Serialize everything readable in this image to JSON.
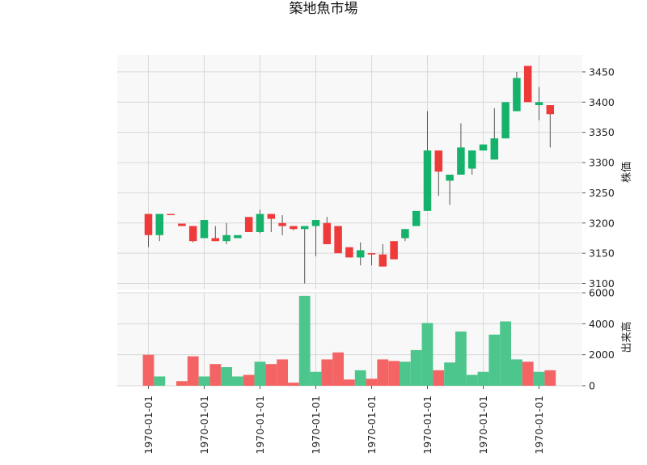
{
  "chart_data": {
    "type": "candlestick",
    "title": "築地魚市場",
    "colors": {
      "up": "#15b26b",
      "down": "#ef3a3a",
      "up_volume": "#4cc68c",
      "down_volume": "#f56464",
      "panel_bg": "#f8f8f8",
      "grid": "#d8d8d8"
    },
    "x_tick_labels": [
      "1970-01-01",
      "1970-01-01",
      "1970-01-01",
      "1970-01-01",
      "1970-01-01",
      "1970-01-01",
      "1970-01-01",
      "1970-01-01"
    ],
    "price_panel": {
      "ylabel": "株価",
      "ylim": [
        3090,
        3478
      ],
      "yticks": [
        3100,
        3150,
        3200,
        3250,
        3300,
        3350,
        3400,
        3450
      ],
      "grid": true
    },
    "volume_panel": {
      "ylabel": "出来高",
      "ylim": [
        0,
        6000
      ],
      "yticks": [
        0,
        2000,
        4000,
        6000
      ],
      "grid": true
    },
    "candles": [
      {
        "open": 3215,
        "high": 3215,
        "low": 3160,
        "close": 3180,
        "volume": 2000
      },
      {
        "open": 3180,
        "high": 3215,
        "low": 3170,
        "close": 3215,
        "volume": 600
      },
      {
        "open": 3215,
        "high": 3215,
        "low": 3214,
        "close": 3214,
        "volume": 0
      },
      {
        "open": 3199,
        "high": 3199,
        "low": 3195,
        "close": 3195,
        "volume": 300
      },
      {
        "open": 3195,
        "high": 3195,
        "low": 3168,
        "close": 3170,
        "volume": 1900
      },
      {
        "open": 3175,
        "high": 3205,
        "low": 3175,
        "close": 3205,
        "volume": 600
      },
      {
        "open": 3175,
        "high": 3195,
        "low": 3170,
        "close": 3170,
        "volume": 1400
      },
      {
        "open": 3170,
        "high": 3200,
        "low": 3165,
        "close": 3180,
        "volume": 1200
      },
      {
        "open": 3175,
        "high": 3180,
        "low": 3175,
        "close": 3180,
        "volume": 600
      },
      {
        "open": 3210,
        "high": 3210,
        "low": 3185,
        "close": 3185,
        "volume": 700
      },
      {
        "open": 3185,
        "high": 3222,
        "low": 3183,
        "close": 3215,
        "volume": 1550
      },
      {
        "open": 3215,
        "high": 3215,
        "low": 3185,
        "close": 3207,
        "volume": 1400
      },
      {
        "open": 3200,
        "high": 3213,
        "low": 3180,
        "close": 3195,
        "volume": 1700
      },
      {
        "open": 3195,
        "high": 3195,
        "low": 3188,
        "close": 3190,
        "volume": 200
      },
      {
        "open": 3190,
        "high": 3195,
        "low": 3100,
        "close": 3195,
        "volume": 5800
      },
      {
        "open": 3195,
        "high": 3205,
        "low": 3145,
        "close": 3205,
        "volume": 900
      },
      {
        "open": 3200,
        "high": 3210,
        "low": 3165,
        "close": 3165,
        "volume": 1700
      },
      {
        "open": 3195,
        "high": 3195,
        "low": 3150,
        "close": 3150,
        "volume": 2150
      },
      {
        "open": 3160,
        "high": 3160,
        "low": 3143,
        "close": 3143,
        "volume": 400
      },
      {
        "open": 3143,
        "high": 3168,
        "low": 3130,
        "close": 3155,
        "volume": 1000
      },
      {
        "open": 3150,
        "high": 3150,
        "low": 3130,
        "close": 3148,
        "volume": 450
      },
      {
        "open": 3148,
        "high": 3165,
        "low": 3128,
        "close": 3128,
        "volume": 1700
      },
      {
        "open": 3170,
        "high": 3170,
        "low": 3140,
        "close": 3140,
        "volume": 1600
      },
      {
        "open": 3175,
        "high": 3190,
        "low": 3170,
        "close": 3190,
        "volume": 1550
      },
      {
        "open": 3195,
        "high": 3220,
        "low": 3195,
        "close": 3220,
        "volume": 2300
      },
      {
        "open": 3220,
        "high": 3385,
        "low": 3220,
        "close": 3320,
        "volume": 4050
      },
      {
        "open": 3320,
        "high": 3320,
        "low": 3245,
        "close": 3285,
        "volume": 1000
      },
      {
        "open": 3270,
        "high": 3280,
        "low": 3230,
        "close": 3280,
        "volume": 1500
      },
      {
        "open": 3280,
        "high": 3365,
        "low": 3280,
        "close": 3325,
        "volume": 3500
      },
      {
        "open": 3290,
        "high": 3320,
        "low": 3280,
        "close": 3320,
        "volume": 700
      },
      {
        "open": 3320,
        "high": 3330,
        "low": 3320,
        "close": 3330,
        "volume": 900
      },
      {
        "open": 3305,
        "high": 3390,
        "low": 3305,
        "close": 3340,
        "volume": 3300
      },
      {
        "open": 3340,
        "high": 3400,
        "low": 3340,
        "close": 3400,
        "volume": 4150
      },
      {
        "open": 3385,
        "high": 3450,
        "low": 3385,
        "close": 3440,
        "volume": 1700
      },
      {
        "open": 3460,
        "high": 3460,
        "low": 3400,
        "close": 3400,
        "volume": 1550
      },
      {
        "open": 3395,
        "high": 3425,
        "low": 3370,
        "close": 3400,
        "volume": 900
      },
      {
        "open": 3395,
        "high": 3395,
        "low": 3325,
        "close": 3380,
        "volume": 1000
      }
    ]
  }
}
